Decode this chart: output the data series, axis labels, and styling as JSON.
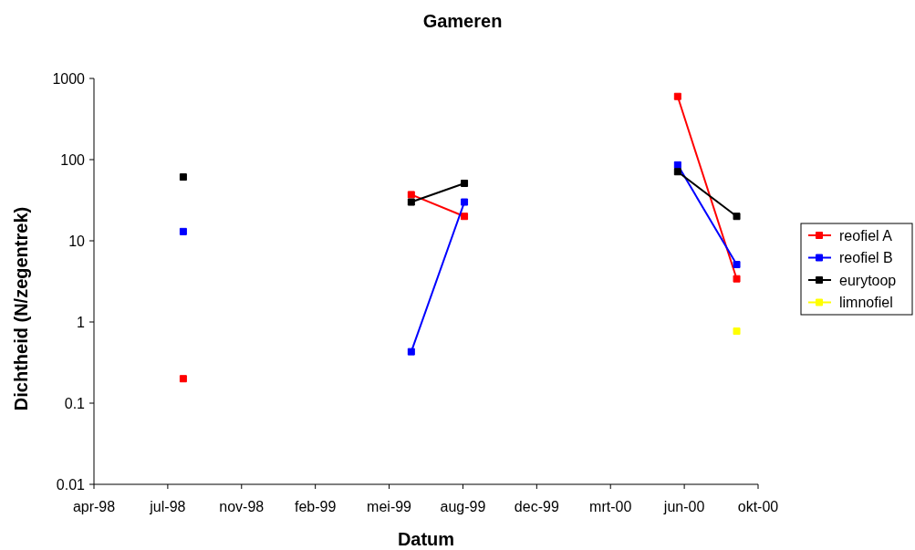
{
  "chart_data": {
    "type": "line",
    "title": "Gameren",
    "xlabel": "Datum",
    "ylabel": "Dichtheid (N/zegentrek)",
    "x": [
      "1998-08-14",
      "1999-01-01",
      "1999-06-19",
      "1999-08-30",
      "2000-01-01",
      "2000-06-14",
      "2000-09-02"
    ],
    "series": [
      {
        "name": "reofiel A",
        "color": "#ff0000",
        "values": [
          0.2,
          null,
          37,
          20,
          null,
          600,
          3.4
        ]
      },
      {
        "name": "reofiel B",
        "color": "#0000ff",
        "values": [
          13,
          null,
          0.43,
          30,
          null,
          86,
          5.1
        ]
      },
      {
        "name": "eurytoop",
        "color": "#000000",
        "values": [
          61,
          null,
          30,
          51,
          null,
          71,
          20
        ]
      },
      {
        "name": "limnofiel",
        "color": "#ffff00",
        "values": [
          null,
          null,
          null,
          null,
          null,
          null,
          0.77
        ]
      }
    ],
    "log": "y",
    "ylim": [
      0.01,
      1000
    ],
    "yticks": [
      0.01,
      0.1,
      1,
      10,
      100,
      1000
    ],
    "xlim": [
      "1998-04-15",
      "2000-10-01"
    ],
    "xticks": [
      {
        "value": "1998-04-15",
        "label": "apr-98"
      },
      {
        "value": "1998-07-24",
        "label": "jul-98"
      },
      {
        "value": "1998-11-01",
        "label": "nov-98"
      },
      {
        "value": "1999-02-09",
        "label": "feb-99"
      },
      {
        "value": "1999-05-20",
        "label": "mei-99"
      },
      {
        "value": "1999-08-28",
        "label": "aug-99"
      },
      {
        "value": "1999-12-06",
        "label": "dec-99"
      },
      {
        "value": "2000-03-15",
        "label": "mrt-00"
      },
      {
        "value": "2000-06-23",
        "label": "jun-00"
      },
      {
        "value": "2000-10-01",
        "label": "okt-00"
      }
    ],
    "grid": false,
    "legend": "right",
    "marker": "square",
    "line_style": "solid"
  }
}
